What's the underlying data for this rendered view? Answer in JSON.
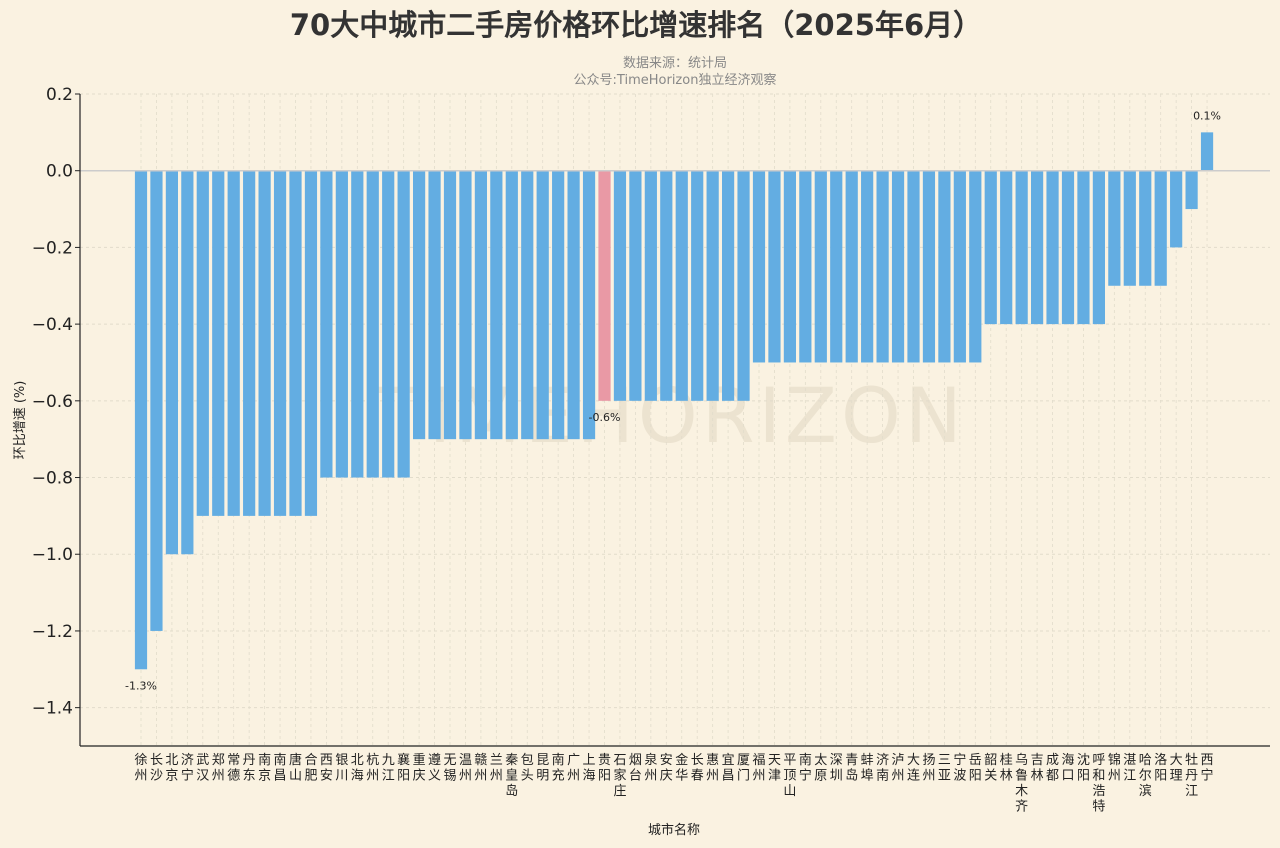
{
  "title": "70大中城市二手房价格环比增速排名（2025年6月）",
  "subtitle_source": "数据来源：统计局",
  "subtitle_account": "公众号:TimeHorizon独立经济观察",
  "watermark": "TIMEHORIZON",
  "colors": {
    "background": "#faf2e1",
    "bar": "#63ade2",
    "highlight": "#e999a5",
    "zero_line": "#cccccc",
    "grid": "#e2dccb",
    "axis": "#222222",
    "watermark": "#ece3d0"
  },
  "chart_data": {
    "type": "bar",
    "title": "70大中城市二手房价格环比增速排名（2025年6月）",
    "xlabel": "城市名称",
    "ylabel": "环比增速 (%)",
    "ylim": [
      -1.5,
      0.2
    ],
    "yticks": [
      "0.2",
      "0.0",
      "−0.2",
      "−0.4",
      "−0.6",
      "−0.8",
      "−1.0",
      "−1.2",
      "−1.4"
    ],
    "grid": true,
    "highlight_category": "贵阳",
    "categories": [
      "徐州",
      "长沙",
      "北京",
      "济宁",
      "武汉",
      "郑州",
      "常德",
      "丹东",
      "南京",
      "南昌",
      "唐山",
      "合肥",
      "西安",
      "银川",
      "北海",
      "杭州",
      "九江",
      "襄阳",
      "重庆",
      "遵义",
      "无锡",
      "温州",
      "赣州",
      "兰州",
      "秦皇岛",
      "包头",
      "昆明",
      "南充",
      "广州",
      "上海",
      "贵阳",
      "石家庄",
      "烟台",
      "泉州",
      "安庆",
      "金华",
      "长春",
      "惠州",
      "宜昌",
      "厦门",
      "福州",
      "天津",
      "平顶山",
      "南宁",
      "太原",
      "深圳",
      "青岛",
      "蚌埠",
      "济南",
      "泸州",
      "大连",
      "扬州",
      "三亚",
      "宁波",
      "岳阳",
      "韶关",
      "桂林",
      "乌鲁木齐",
      "吉林",
      "成都",
      "海口",
      "沈阳",
      "呼和浩特",
      "锦州",
      "湛江",
      "哈尔滨",
      "洛阳",
      "大理",
      "牡丹江",
      "西宁"
    ],
    "values": [
      -1.3,
      -1.2,
      -1.0,
      -1.0,
      -0.9,
      -0.9,
      -0.9,
      -0.9,
      -0.9,
      -0.9,
      -0.9,
      -0.9,
      -0.8,
      -0.8,
      -0.8,
      -0.8,
      -0.8,
      -0.8,
      -0.7,
      -0.7,
      -0.7,
      -0.7,
      -0.7,
      -0.7,
      -0.7,
      -0.7,
      -0.7,
      -0.7,
      -0.7,
      -0.7,
      -0.6,
      -0.6,
      -0.6,
      -0.6,
      -0.6,
      -0.6,
      -0.6,
      -0.6,
      -0.6,
      -0.6,
      -0.5,
      -0.5,
      -0.5,
      -0.5,
      -0.5,
      -0.5,
      -0.5,
      -0.5,
      -0.5,
      -0.5,
      -0.5,
      -0.5,
      -0.5,
      -0.5,
      -0.5,
      -0.4,
      -0.4,
      -0.4,
      -0.4,
      -0.4,
      -0.4,
      -0.4,
      -0.4,
      -0.3,
      -0.3,
      -0.3,
      -0.3,
      -0.2,
      -0.1,
      0.1
    ],
    "data_labels": [
      {
        "index": 0,
        "text": "-1.3%"
      },
      {
        "index": 30,
        "text": "-0.6%"
      },
      {
        "index": 69,
        "text": "0.1%"
      }
    ]
  }
}
